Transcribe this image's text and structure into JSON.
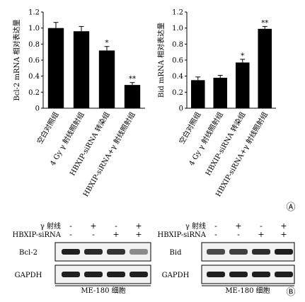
{
  "panel_a_label": "Ⓐ",
  "panel_b_label": "Ⓑ",
  "chart_data": [
    {
      "type": "bar",
      "ylabel": "Bcl-2 mRNA 相对表达量",
      "ylim": [
        0,
        1.2
      ],
      "yticks": [
        "0",
        "0.2",
        "0.4",
        "0.6",
        "0.8",
        "1.0",
        "1.2"
      ],
      "categories": [
        "空白对照组",
        "4 Gy γ 射线照射组",
        "HBXIP-siRNA 转染组",
        "HBXIP-siRNA+γ 射线照射组"
      ],
      "values": [
        1.0,
        0.96,
        0.72,
        0.29
      ],
      "errors": [
        0.07,
        0.06,
        0.05,
        0.03
      ],
      "annotations": [
        "",
        "",
        "*",
        "**"
      ]
    },
    {
      "type": "bar",
      "ylabel": "Bid mRNA 相对表达量",
      "ylim": [
        0,
        1.2
      ],
      "yticks": [
        "0",
        "0.2",
        "0.4",
        "0.6",
        "0.8",
        "1.0",
        "1.2"
      ],
      "categories": [
        "空白对照组",
        "4 Gy γ 射线照射组",
        "HBXIP-siRNA 转染组",
        "HBXIP-siRNA+γ 射线照射组"
      ],
      "values": [
        0.35,
        0.38,
        0.57,
        0.99
      ],
      "errors": [
        0.04,
        0.03,
        0.04,
        0.03
      ],
      "annotations": [
        "",
        "",
        "*",
        "**"
      ]
    }
  ],
  "blots": [
    {
      "gamma_label": "γ 射线",
      "siRNA_label": "HBXIP-siRNA",
      "gamma_signs": [
        "-",
        "+",
        "-",
        "+"
      ],
      "siRNA_signs": [
        "-",
        "-",
        "+",
        "+"
      ],
      "rows": [
        {
          "label": "Bcl-2",
          "intensities": [
            0.95,
            0.9,
            0.85,
            0.45
          ]
        },
        {
          "label": "GAPDH",
          "intensities": [
            0.95,
            0.95,
            0.95,
            0.95
          ]
        }
      ],
      "cell_label": "ME-180 细胞"
    },
    {
      "gamma_label": "γ 射线",
      "siRNA_label": "HBXIP-siRNA",
      "gamma_signs": [
        "-",
        "+",
        "-",
        "+"
      ],
      "siRNA_signs": [
        "-",
        "-",
        "+",
        "+"
      ],
      "rows": [
        {
          "label": "Bid",
          "intensities": [
            0.75,
            0.8,
            0.88,
            0.95
          ]
        },
        {
          "label": "GAPDH",
          "intensities": [
            0.95,
            0.95,
            0.95,
            0.95
          ]
        }
      ],
      "cell_label": "ME-180 细胞"
    }
  ]
}
